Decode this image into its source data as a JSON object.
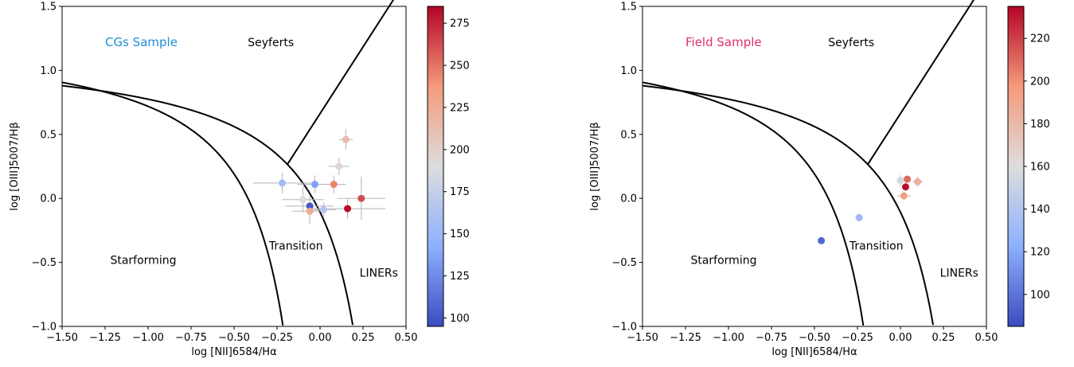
{
  "chart_data": [
    {
      "type": "scatter",
      "sample_label": "CGs Sample",
      "sample_label_color": "#1f8fd6",
      "xlabel": "log [NII]6584/Hα",
      "ylabel": "log [OIII]5007/Hβ",
      "xlim": [
        -1.5,
        0.5
      ],
      "ylim": [
        -1.0,
        1.5
      ],
      "xticks": [
        "−1.50",
        "−1.25",
        "−1.00",
        "−0.75",
        "−0.50",
        "−0.25",
        "0.00",
        "0.25",
        "0.50"
      ],
      "yticks": [
        "−1.0",
        "−0.5",
        "0.0",
        "0.5",
        "1.0",
        "1.5"
      ],
      "regions": {
        "starforming": "Starforming",
        "transition": "Transition",
        "liners": "LINERs",
        "seyferts": "Seyferts"
      },
      "colorbar": {
        "range": [
          95,
          285
        ],
        "ticks": [
          "100",
          "125",
          "150",
          "175",
          "200",
          "225",
          "250",
          "275"
        ],
        "colormap": "coolwarm"
      },
      "points": [
        {
          "x": -0.22,
          "y": 0.12,
          "xerr": 0.17,
          "yerr": 0.08,
          "c": 155
        },
        {
          "x": -0.03,
          "y": 0.11,
          "xerr": 0.1,
          "yerr": 0.07,
          "c": 135
        },
        {
          "x": 0.08,
          "y": 0.11,
          "xerr": 0.07,
          "yerr": 0.07,
          "c": 245
        },
        {
          "x": 0.11,
          "y": 0.25,
          "xerr": 0.06,
          "yerr": 0.07,
          "c": 195
        },
        {
          "x": 0.15,
          "y": 0.46,
          "xerr": 0.04,
          "yerr": 0.08,
          "c": 215
        },
        {
          "x": -0.1,
          "y": -0.01,
          "xerr": 0.12,
          "yerr": 0.1,
          "c": 190
        },
        {
          "x": -0.06,
          "y": -0.06,
          "xerr": 0.14,
          "yerr": 0.09,
          "c": 100
        },
        {
          "x": -0.06,
          "y": -0.1,
          "xerr": 0.1,
          "yerr": 0.1,
          "c": 225
        },
        {
          "x": 0.02,
          "y": -0.09,
          "xerr": 0.07,
          "yerr": 0.06,
          "c": 165
        },
        {
          "x": 0.24,
          "y": 0.0,
          "xerr": 0.14,
          "yerr": 0.17,
          "c": 262
        },
        {
          "x": 0.16,
          "y": -0.08,
          "xerr": 0.22,
          "yerr": 0.08,
          "c": 282
        }
      ]
    },
    {
      "type": "scatter",
      "sample_label": "Field Sample",
      "sample_label_color": "#e0306a",
      "xlabel": "log [NII]6584/Hα",
      "ylabel": "log [OIII]5007/Hβ",
      "xlim": [
        -1.5,
        0.5
      ],
      "ylim": [
        -1.0,
        1.5
      ],
      "xticks": [
        "−1.50",
        "−1.25",
        "−1.00",
        "−0.75",
        "−0.50",
        "−0.25",
        "0.00",
        "0.25",
        "0.50"
      ],
      "yticks": [
        "−1.0",
        "−0.5",
        "0.0",
        "0.5",
        "1.0",
        "1.5"
      ],
      "regions": {
        "starforming": "Starforming",
        "transition": "Transition",
        "liners": "LINERs",
        "seyferts": "Seyferts"
      },
      "colorbar": {
        "range": [
          85,
          235
        ],
        "ticks": [
          "100",
          "120",
          "140",
          "160",
          "180",
          "200",
          "220"
        ],
        "colormap": "coolwarm"
      },
      "points": [
        {
          "x": -0.46,
          "y": -0.33,
          "xerr": 0.01,
          "yerr": 0.02,
          "c": 95
        },
        {
          "x": -0.24,
          "y": -0.15,
          "xerr": 0.01,
          "yerr": 0.03,
          "c": 130
        },
        {
          "x": 0.0,
          "y": 0.14,
          "xerr": 0.02,
          "yerr": 0.04,
          "c": 155
        },
        {
          "x": 0.1,
          "y": 0.13,
          "xerr": 0.03,
          "yerr": 0.04,
          "c": 185
        },
        {
          "x": 0.04,
          "y": 0.15,
          "xerr": 0.02,
          "yerr": 0.03,
          "c": 210
        },
        {
          "x": 0.03,
          "y": 0.09,
          "xerr": 0.02,
          "yerr": 0.03,
          "c": 232
        },
        {
          "x": 0.02,
          "y": 0.02,
          "xerr": 0.04,
          "yerr": 0.03,
          "c": 195
        }
      ]
    }
  ]
}
